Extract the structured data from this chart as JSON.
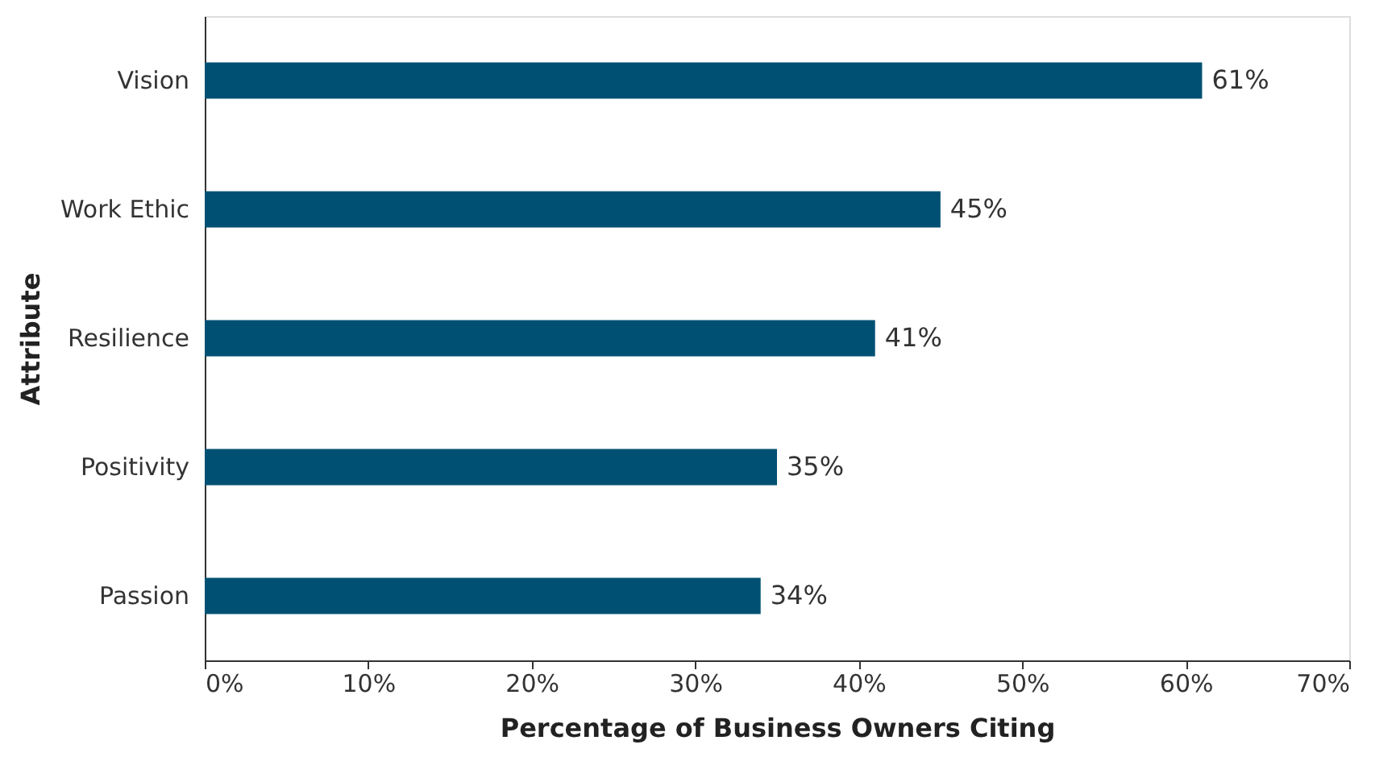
{
  "chart_data": {
    "type": "bar",
    "orientation": "horizontal",
    "xlabel": "Percentage of Business Owners Citing",
    "ylabel": "Attribute",
    "categories": [
      "Vision",
      "Work Ethic",
      "Resilience",
      "Positivity",
      "Passion"
    ],
    "values": [
      61,
      45,
      41,
      35,
      34
    ],
    "color": "#005073",
    "value_labels": [
      "61%",
      "45%",
      "41%",
      "35%",
      "34%"
    ],
    "xlim": [
      0,
      70
    ],
    "xticks": [
      {
        "value": 0,
        "label": "0%"
      },
      {
        "value": 10,
        "label": "10%"
      },
      {
        "value": 20,
        "label": "20%"
      },
      {
        "value": 30,
        "label": "30%"
      },
      {
        "value": 40,
        "label": "40%"
      },
      {
        "value": 50,
        "label": "50%"
      },
      {
        "value": 60,
        "label": "60%"
      },
      {
        "value": 70,
        "label": "70%"
      }
    ],
    "grid": false
  }
}
